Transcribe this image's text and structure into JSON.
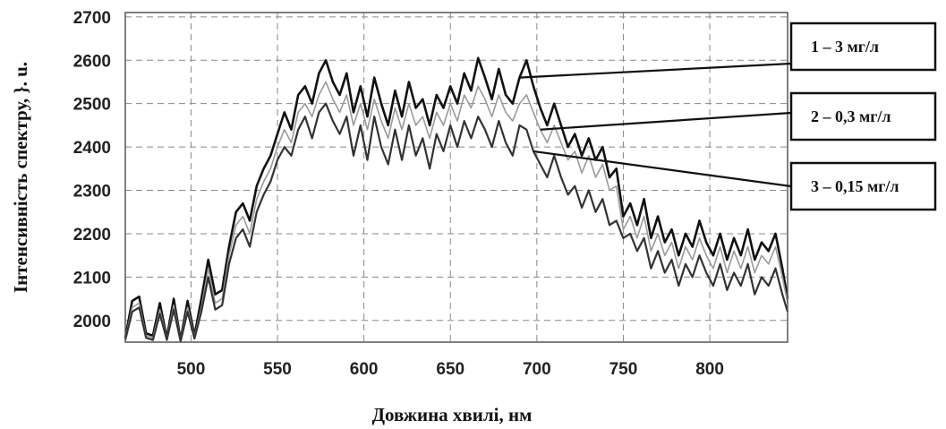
{
  "chart_data": {
    "type": "line",
    "xlabel": "Довжина хвилі, нм",
    "ylabel": "Інтенсивність спектру, }. u.",
    "xlim": [
      462,
      845
    ],
    "ylim": [
      1950,
      2710
    ],
    "x_ticks": [
      500,
      550,
      600,
      650,
      700,
      750,
      800
    ],
    "y_ticks": [
      2000,
      2100,
      2200,
      2300,
      2400,
      2500,
      2600,
      2700
    ],
    "grid": true,
    "legend_placement": "right, outside plot",
    "series": [
      {
        "name": "1 – 3 мг/л",
        "color": "#111111",
        "label_anchor_x": 692,
        "points": [
          [
            462,
            1960
          ],
          [
            466,
            2045
          ],
          [
            470,
            2055
          ],
          [
            474,
            1970
          ],
          [
            478,
            1965
          ],
          [
            482,
            2040
          ],
          [
            486,
            1960
          ],
          [
            490,
            2050
          ],
          [
            494,
            1955
          ],
          [
            498,
            2045
          ],
          [
            502,
            1965
          ],
          [
            506,
            2050
          ],
          [
            510,
            2140
          ],
          [
            514,
            2060
          ],
          [
            518,
            2070
          ],
          [
            522,
            2170
          ],
          [
            526,
            2250
          ],
          [
            530,
            2270
          ],
          [
            534,
            2230
          ],
          [
            538,
            2310
          ],
          [
            542,
            2350
          ],
          [
            546,
            2380
          ],
          [
            550,
            2430
          ],
          [
            554,
            2480
          ],
          [
            558,
            2440
          ],
          [
            562,
            2520
          ],
          [
            566,
            2540
          ],
          [
            570,
            2500
          ],
          [
            574,
            2570
          ],
          [
            578,
            2600
          ],
          [
            582,
            2550
          ],
          [
            586,
            2520
          ],
          [
            590,
            2570
          ],
          [
            594,
            2480
          ],
          [
            598,
            2540
          ],
          [
            602,
            2470
          ],
          [
            606,
            2560
          ],
          [
            610,
            2500
          ],
          [
            614,
            2450
          ],
          [
            618,
            2530
          ],
          [
            622,
            2470
          ],
          [
            626,
            2550
          ],
          [
            630,
            2490
          ],
          [
            634,
            2510
          ],
          [
            638,
            2450
          ],
          [
            642,
            2520
          ],
          [
            646,
            2490
          ],
          [
            650,
            2540
          ],
          [
            654,
            2500
          ],
          [
            658,
            2570
          ],
          [
            662,
            2530
          ],
          [
            666,
            2605
          ],
          [
            670,
            2560
          ],
          [
            674,
            2510
          ],
          [
            678,
            2580
          ],
          [
            682,
            2520
          ],
          [
            686,
            2500
          ],
          [
            690,
            2560
          ],
          [
            694,
            2600
          ],
          [
            698,
            2540
          ],
          [
            702,
            2490
          ],
          [
            706,
            2450
          ],
          [
            710,
            2500
          ],
          [
            714,
            2450
          ],
          [
            718,
            2400
          ],
          [
            722,
            2430
          ],
          [
            726,
            2380
          ],
          [
            730,
            2420
          ],
          [
            734,
            2370
          ],
          [
            738,
            2400
          ],
          [
            742,
            2330
          ],
          [
            746,
            2350
          ],
          [
            750,
            2240
          ],
          [
            754,
            2270
          ],
          [
            758,
            2220
          ],
          [
            762,
            2280
          ],
          [
            766,
            2190
          ],
          [
            770,
            2240
          ],
          [
            774,
            2180
          ],
          [
            778,
            2210
          ],
          [
            782,
            2150
          ],
          [
            786,
            2200
          ],
          [
            790,
            2170
          ],
          [
            794,
            2230
          ],
          [
            798,
            2180
          ],
          [
            802,
            2150
          ],
          [
            806,
            2200
          ],
          [
            810,
            2140
          ],
          [
            814,
            2190
          ],
          [
            818,
            2150
          ],
          [
            822,
            2210
          ],
          [
            826,
            2140
          ],
          [
            830,
            2180
          ],
          [
            834,
            2160
          ],
          [
            838,
            2200
          ],
          [
            842,
            2120
          ],
          [
            845,
            2050
          ]
        ]
      },
      {
        "name": "2 – 0,3 мг/л",
        "color": "#9a9a9a",
        "label_anchor_x": 702,
        "points": [
          [
            462,
            1958
          ],
          [
            466,
            2030
          ],
          [
            470,
            2040
          ],
          [
            474,
            1965
          ],
          [
            478,
            1960
          ],
          [
            482,
            2025
          ],
          [
            486,
            1958
          ],
          [
            490,
            2035
          ],
          [
            494,
            1955
          ],
          [
            498,
            2030
          ],
          [
            502,
            1962
          ],
          [
            506,
            2030
          ],
          [
            510,
            2120
          ],
          [
            514,
            2040
          ],
          [
            518,
            2050
          ],
          [
            522,
            2150
          ],
          [
            526,
            2220
          ],
          [
            530,
            2240
          ],
          [
            534,
            2200
          ],
          [
            538,
            2280
          ],
          [
            542,
            2320
          ],
          [
            546,
            2350
          ],
          [
            550,
            2400
          ],
          [
            554,
            2440
          ],
          [
            558,
            2410
          ],
          [
            562,
            2480
          ],
          [
            566,
            2500
          ],
          [
            570,
            2470
          ],
          [
            574,
            2520
          ],
          [
            578,
            2550
          ],
          [
            582,
            2510
          ],
          [
            586,
            2480
          ],
          [
            590,
            2520
          ],
          [
            594,
            2450
          ],
          [
            598,
            2500
          ],
          [
            602,
            2440
          ],
          [
            606,
            2510
          ],
          [
            610,
            2460
          ],
          [
            614,
            2420
          ],
          [
            618,
            2490
          ],
          [
            622,
            2440
          ],
          [
            626,
            2500
          ],
          [
            630,
            2450
          ],
          [
            634,
            2470
          ],
          [
            638,
            2420
          ],
          [
            642,
            2480
          ],
          [
            646,
            2450
          ],
          [
            650,
            2500
          ],
          [
            654,
            2460
          ],
          [
            658,
            2520
          ],
          [
            662,
            2490
          ],
          [
            666,
            2540
          ],
          [
            670,
            2510
          ],
          [
            674,
            2470
          ],
          [
            678,
            2520
          ],
          [
            682,
            2480
          ],
          [
            686,
            2460
          ],
          [
            690,
            2500
          ],
          [
            694,
            2520
          ],
          [
            698,
            2480
          ],
          [
            702,
            2440
          ],
          [
            706,
            2410
          ],
          [
            710,
            2450
          ],
          [
            714,
            2410
          ],
          [
            718,
            2370
          ],
          [
            722,
            2390
          ],
          [
            726,
            2340
          ],
          [
            730,
            2380
          ],
          [
            734,
            2330
          ],
          [
            738,
            2360
          ],
          [
            742,
            2300
          ],
          [
            746,
            2310
          ],
          [
            750,
            2210
          ],
          [
            754,
            2240
          ],
          [
            758,
            2190
          ],
          [
            762,
            2240
          ],
          [
            766,
            2160
          ],
          [
            770,
            2200
          ],
          [
            774,
            2150
          ],
          [
            778,
            2180
          ],
          [
            782,
            2120
          ],
          [
            786,
            2170
          ],
          [
            790,
            2140
          ],
          [
            794,
            2190
          ],
          [
            798,
            2150
          ],
          [
            802,
            2120
          ],
          [
            806,
            2170
          ],
          [
            810,
            2110
          ],
          [
            814,
            2160
          ],
          [
            818,
            2120
          ],
          [
            822,
            2170
          ],
          [
            826,
            2110
          ],
          [
            830,
            2150
          ],
          [
            834,
            2130
          ],
          [
            838,
            2170
          ],
          [
            842,
            2100
          ],
          [
            845,
            2040
          ]
        ]
      },
      {
        "name": "3 – 0,15 мг/л",
        "color": "#333333",
        "label_anchor_x": 697,
        "points": [
          [
            462,
            1955
          ],
          [
            466,
            2020
          ],
          [
            470,
            2030
          ],
          [
            474,
            1960
          ],
          [
            478,
            1955
          ],
          [
            482,
            2015
          ],
          [
            486,
            1955
          ],
          [
            490,
            2025
          ],
          [
            494,
            1952
          ],
          [
            498,
            2020
          ],
          [
            502,
            1958
          ],
          [
            506,
            2020
          ],
          [
            510,
            2100
          ],
          [
            514,
            2025
          ],
          [
            518,
            2035
          ],
          [
            522,
            2130
          ],
          [
            526,
            2190
          ],
          [
            530,
            2210
          ],
          [
            534,
            2170
          ],
          [
            538,
            2250
          ],
          [
            542,
            2290
          ],
          [
            546,
            2320
          ],
          [
            550,
            2370
          ],
          [
            554,
            2400
          ],
          [
            558,
            2380
          ],
          [
            562,
            2440
          ],
          [
            566,
            2470
          ],
          [
            570,
            2420
          ],
          [
            574,
            2480
          ],
          [
            578,
            2500
          ],
          [
            582,
            2460
          ],
          [
            586,
            2430
          ],
          [
            590,
            2470
          ],
          [
            594,
            2380
          ],
          [
            598,
            2450
          ],
          [
            602,
            2370
          ],
          [
            606,
            2470
          ],
          [
            610,
            2400
          ],
          [
            614,
            2360
          ],
          [
            618,
            2440
          ],
          [
            622,
            2370
          ],
          [
            626,
            2450
          ],
          [
            630,
            2380
          ],
          [
            634,
            2420
          ],
          [
            638,
            2350
          ],
          [
            642,
            2430
          ],
          [
            646,
            2390
          ],
          [
            650,
            2450
          ],
          [
            654,
            2400
          ],
          [
            658,
            2460
          ],
          [
            662,
            2420
          ],
          [
            666,
            2470
          ],
          [
            670,
            2440
          ],
          [
            674,
            2400
          ],
          [
            678,
            2460
          ],
          [
            682,
            2410
          ],
          [
            686,
            2380
          ],
          [
            690,
            2450
          ],
          [
            694,
            2440
          ],
          [
            698,
            2390
          ],
          [
            702,
            2360
          ],
          [
            706,
            2330
          ],
          [
            710,
            2380
          ],
          [
            714,
            2330
          ],
          [
            718,
            2290
          ],
          [
            722,
            2310
          ],
          [
            726,
            2260
          ],
          [
            730,
            2300
          ],
          [
            734,
            2250
          ],
          [
            738,
            2280
          ],
          [
            742,
            2220
          ],
          [
            746,
            2230
          ],
          [
            750,
            2190
          ],
          [
            754,
            2200
          ],
          [
            758,
            2160
          ],
          [
            762,
            2190
          ],
          [
            766,
            2120
          ],
          [
            770,
            2160
          ],
          [
            774,
            2110
          ],
          [
            778,
            2140
          ],
          [
            782,
            2080
          ],
          [
            786,
            2130
          ],
          [
            790,
            2100
          ],
          [
            794,
            2150
          ],
          [
            798,
            2110
          ],
          [
            802,
            2080
          ],
          [
            806,
            2130
          ],
          [
            810,
            2070
          ],
          [
            814,
            2110
          ],
          [
            818,
            2080
          ],
          [
            822,
            2130
          ],
          [
            826,
            2060
          ],
          [
            830,
            2100
          ],
          [
            834,
            2080
          ],
          [
            838,
            2120
          ],
          [
            842,
            2060
          ],
          [
            845,
            2020
          ]
        ]
      }
    ]
  }
}
